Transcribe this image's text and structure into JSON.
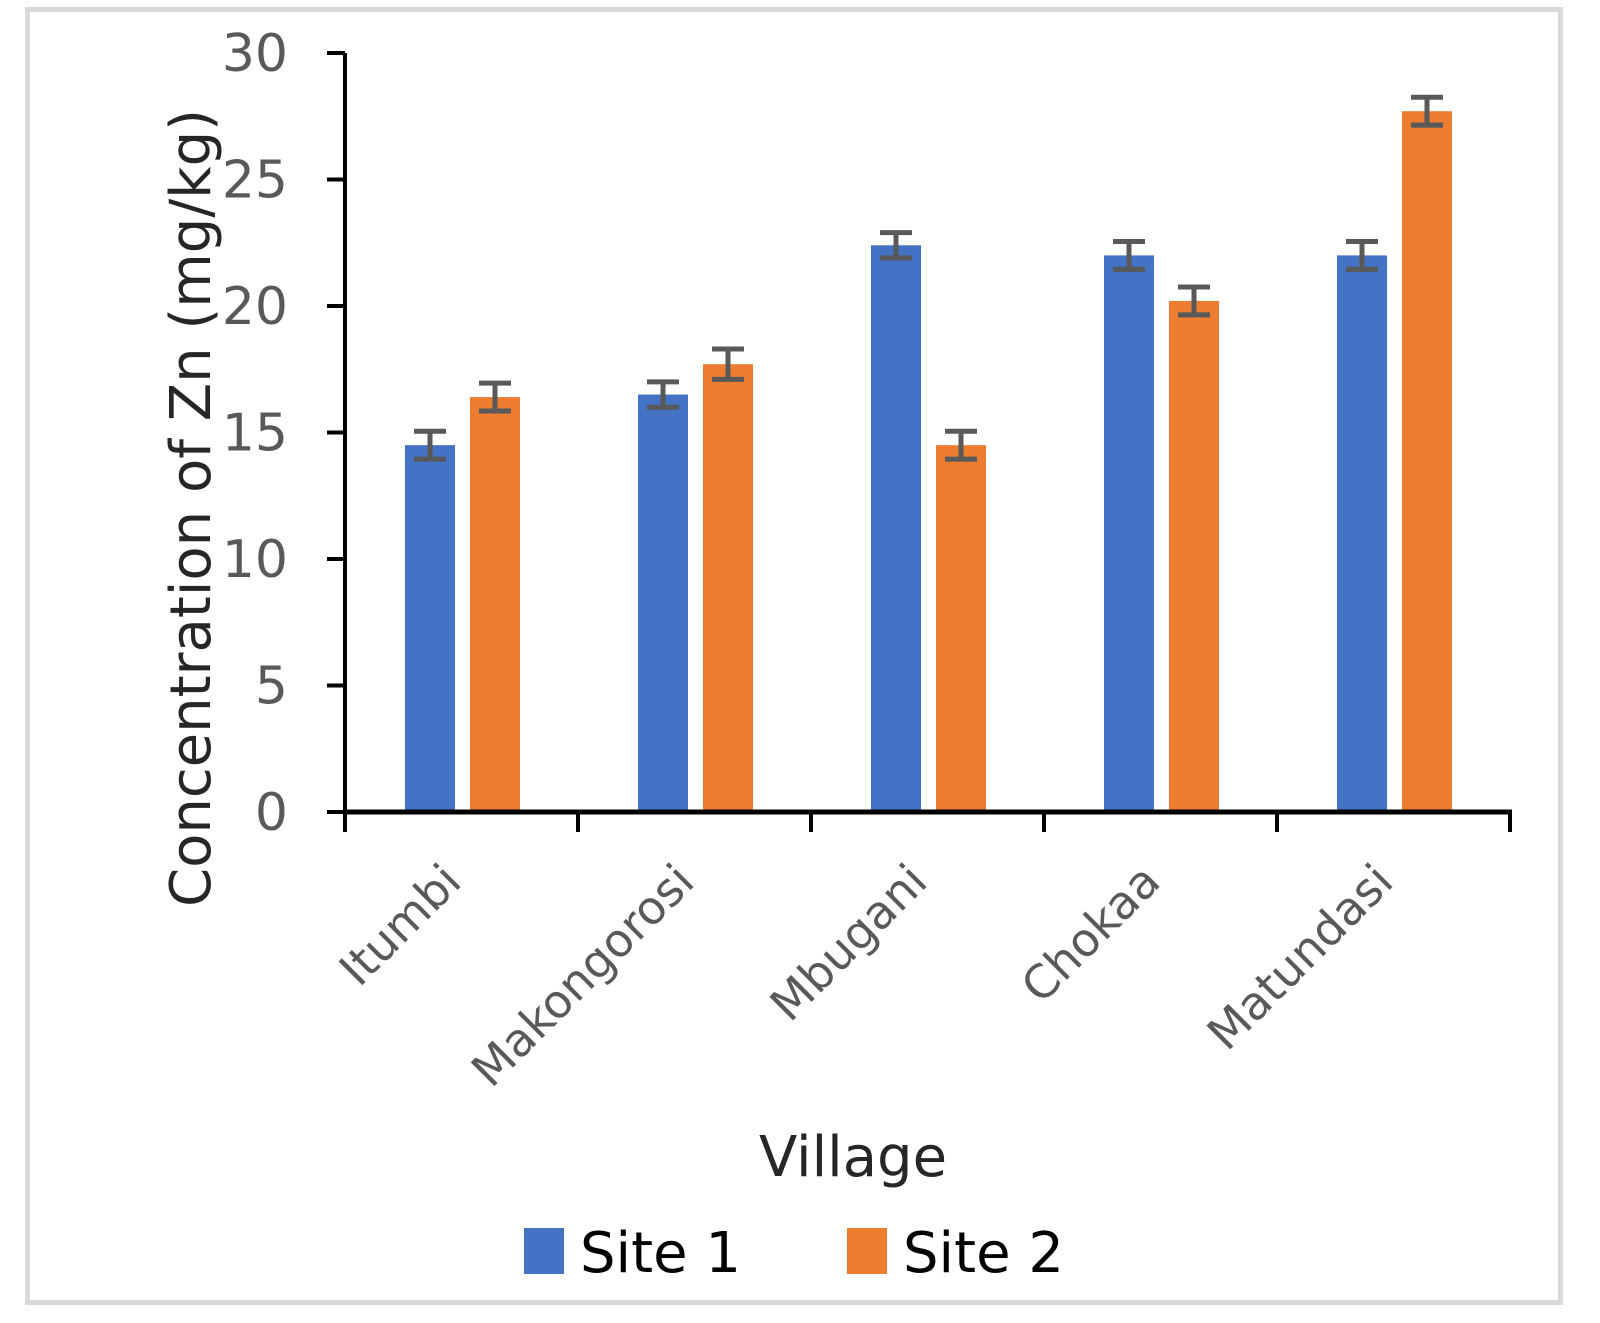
{
  "chart_data": {
    "type": "bar",
    "title": "",
    "xlabel": "Village",
    "ylabel": "Concentration of Zn (mg/kg)",
    "ylim": [
      0,
      30
    ],
    "yticks": [
      0,
      5,
      10,
      15,
      20,
      25,
      30
    ],
    "categories": [
      "Itumbi",
      "Makongorosi",
      "Mbugani",
      "Chokaa",
      "Matundasi"
    ],
    "series": [
      {
        "name": "Site 1",
        "color": "#4472c4",
        "values": [
          14.5,
          16.5,
          22.4,
          22.0,
          22.0
        ],
        "errors": [
          0.55,
          0.5,
          0.5,
          0.55,
          0.55
        ]
      },
      {
        "name": "Site 2",
        "color": "#ed7d31",
        "values": [
          16.4,
          17.7,
          14.5,
          20.2,
          27.7
        ],
        "errors": [
          0.55,
          0.6,
          0.55,
          0.55,
          0.55
        ]
      }
    ],
    "error_bar_color": "#595959",
    "grid": false,
    "legend_position": "bottom"
  }
}
